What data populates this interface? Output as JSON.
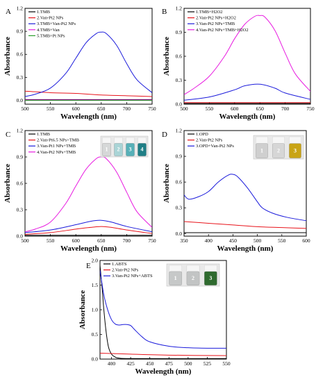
{
  "figure": {
    "chart_data": [
      {
        "panel": "A",
        "type": "line",
        "xlabel": "Wavelength (nm)",
        "ylabel": "Absorbance",
        "xlim": [
          500,
          750
        ],
        "ylim": [
          -0.05,
          1.2
        ],
        "xticks": [
          "500",
          "550",
          "600",
          "650",
          "700",
          "750"
        ],
        "yticks": [
          "0.0",
          "0.3",
          "0.6",
          "0.9",
          "1.2"
        ],
        "legend_position": "top-left",
        "series": [
          {
            "name": "1.TMB",
            "color": "#000000",
            "x": [
              500,
              550,
              600,
              650,
              700,
              750
            ],
            "y": [
              0.01,
              0.01,
              0.01,
              0.01,
              0.01,
              0.01
            ]
          },
          {
            "name": "2.Van-Pt2 NPs",
            "color": "#e8141b",
            "x": [
              500,
              550,
              600,
              650,
              700,
              750
            ],
            "y": [
              0.12,
              0.1,
              0.09,
              0.07,
              0.06,
              0.05
            ]
          },
          {
            "name": "3.TMB+Van-Pt2 NPs",
            "color": "#1a1adb",
            "x": [
              500,
              520,
              550,
              580,
              600,
              620,
              640,
              650,
              660,
              680,
              700,
              720,
              750
            ],
            "y": [
              0.05,
              0.08,
              0.16,
              0.35,
              0.55,
              0.75,
              0.87,
              0.89,
              0.87,
              0.72,
              0.48,
              0.27,
              0.1
            ]
          },
          {
            "name": "4.TMB+Van",
            "color": "#e81ae0",
            "x": [
              500,
              550,
              600,
              650,
              700,
              750
            ],
            "y": [
              0.005,
              0.005,
              0.005,
              0.005,
              0.005,
              0.005
            ]
          },
          {
            "name": "5.TMB+Pt NPs",
            "color": "#2a9d2a",
            "x": [
              500,
              550,
              600,
              650,
              700,
              750
            ],
            "y": [
              0.0,
              0.0,
              0.0,
              0.0,
              0.0,
              0.0
            ]
          }
        ]
      },
      {
        "panel": "B",
        "type": "line",
        "xlabel": "Wavelength (nm)",
        "ylabel": "Absorbance",
        "xlim": [
          500,
          750
        ],
        "ylim": [
          0.0,
          1.2
        ],
        "xticks": [
          "500",
          "550",
          "600",
          "650",
          "700",
          "750"
        ],
        "yticks": [
          "0.0",
          "0.3",
          "0.6",
          "0.9",
          "1.2"
        ],
        "legend_position": "top-left",
        "series": [
          {
            "name": "1.TMB+H2O2",
            "color": "#000000",
            "x": [
              500,
              550,
              600,
              650,
              700,
              750
            ],
            "y": [
              0.01,
              0.01,
              0.01,
              0.01,
              0.01,
              0.01
            ]
          },
          {
            "name": "2.Van-Pt2 NPs+H2O2",
            "color": "#e8141b",
            "x": [
              500,
              550,
              600,
              650,
              700,
              750
            ],
            "y": [
              0.02,
              0.02,
              0.02,
              0.02,
              0.02,
              0.02
            ]
          },
          {
            "name": "3.Van-Pt2 NPs+TMB",
            "color": "#1a1adb",
            "x": [
              500,
              550,
              600,
              620,
              650,
              680,
              700,
              750
            ],
            "y": [
              0.05,
              0.09,
              0.18,
              0.23,
              0.25,
              0.2,
              0.14,
              0.06
            ]
          },
          {
            "name": "4.Van-Pt2 NPs+TMB+H2O2",
            "color": "#e81ae0",
            "x": [
              500,
              520,
              550,
              580,
              600,
              620,
              640,
              650,
              660,
              680,
              700,
              720,
              750
            ],
            "y": [
              0.12,
              0.2,
              0.35,
              0.6,
              0.82,
              1.0,
              1.1,
              1.11,
              1.09,
              0.92,
              0.64,
              0.38,
              0.16
            ]
          }
        ]
      },
      {
        "panel": "C",
        "type": "line",
        "xlabel": "Wavelength (nm)",
        "ylabel": "Absorbance",
        "xlim": [
          500,
          750
        ],
        "ylim": [
          0.0,
          1.2
        ],
        "xticks": [
          "500",
          "550",
          "600",
          "650",
          "700",
          "750"
        ],
        "yticks": [
          "0.0",
          "0.3",
          "0.6",
          "0.9",
          "1.2"
        ],
        "legend_position": "top-left",
        "series": [
          {
            "name": "1.TMB",
            "color": "#000000",
            "x": [
              500,
              550,
              600,
              650,
              700,
              750
            ],
            "y": [
              0.01,
              0.01,
              0.01,
              0.01,
              0.01,
              0.01
            ]
          },
          {
            "name": "2.Van-Pt6.5 NPs+TMB",
            "color": "#e8141b",
            "x": [
              500,
              550,
              600,
              630,
              650,
              670,
              700,
              750
            ],
            "y": [
              0.02,
              0.04,
              0.08,
              0.1,
              0.11,
              0.1,
              0.07,
              0.03
            ]
          },
          {
            "name": "3.Van-Pt1 NPs+TMB",
            "color": "#1a1adb",
            "x": [
              500,
              550,
              600,
              630,
              650,
              670,
              700,
              750
            ],
            "y": [
              0.04,
              0.07,
              0.13,
              0.17,
              0.18,
              0.16,
              0.11,
              0.05
            ]
          },
          {
            "name": "4.Van-Pt2 NPs+TMB",
            "color": "#e81ae0",
            "x": [
              500,
              520,
              550,
              580,
              600,
              620,
              640,
              650,
              660,
              680,
              700,
              720,
              750
            ],
            "y": [
              0.05,
              0.08,
              0.16,
              0.37,
              0.57,
              0.76,
              0.88,
              0.9,
              0.88,
              0.73,
              0.5,
              0.28,
              0.1
            ]
          }
        ]
      },
      {
        "panel": "D",
        "type": "line",
        "xlabel": "Wavelength (nm)",
        "ylabel": "Absorbance",
        "xlim": [
          350,
          600
        ],
        "ylim": [
          -0.03,
          1.2
        ],
        "xticks": [
          "350",
          "400",
          "450",
          "500",
          "550",
          "600"
        ],
        "yticks": [
          "0.0",
          "0.3",
          "0.6",
          "0.9",
          "1.2"
        ],
        "legend_position": "top-left",
        "series": [
          {
            "name": "1.OPD",
            "color": "#000000",
            "x": [
              350,
              400,
              450,
              500,
              550,
              600
            ],
            "y": [
              0.01,
              0.01,
              0.01,
              0.01,
              0.01,
              0.01
            ]
          },
          {
            "name": "2.Van-Pt2 NPs",
            "color": "#e8141b",
            "x": [
              350,
              400,
              450,
              500,
              550,
              600
            ],
            "y": [
              0.14,
              0.12,
              0.1,
              0.08,
              0.07,
              0.06
            ]
          },
          {
            "name": "3.OPD+Van-Pt2 NPs",
            "color": "#1a1adb",
            "x": [
              350,
              360,
              380,
              400,
              420,
              440,
              450,
              460,
              480,
              500,
              510,
              530,
              560,
              600
            ],
            "y": [
              0.45,
              0.4,
              0.43,
              0.49,
              0.6,
              0.68,
              0.69,
              0.66,
              0.53,
              0.37,
              0.3,
              0.24,
              0.19,
              0.15
            ]
          }
        ]
      },
      {
        "panel": "E",
        "type": "line",
        "xlabel": "Wavelength (nm)",
        "ylabel": "Absorbance",
        "xlim": [
          385,
          550
        ],
        "ylim": [
          0.0,
          2.0
        ],
        "xticks": [
          "400",
          "425",
          "450",
          "475",
          "500",
          "525",
          "550"
        ],
        "yticks": [
          "0.0",
          "0.5",
          "1.0",
          "1.5",
          "2.0"
        ],
        "legend_position": "top-left",
        "series": [
          {
            "name": "1.ABTS",
            "color": "#000000",
            "x": [
              385,
              388,
              390,
              393,
              396,
              400,
              405,
              410,
              430,
              550
            ],
            "y": [
              1.9,
              1.4,
              1.0,
              0.55,
              0.25,
              0.1,
              0.04,
              0.02,
              0.01,
              0.01
            ]
          },
          {
            "name": "2.Van-Pt2 NPs",
            "color": "#e8141b",
            "x": [
              385,
              425,
              475,
              550
            ],
            "y": [
              0.12,
              0.1,
              0.08,
              0.07
            ]
          },
          {
            "name": "3.Van-Pt2 NPs+ABTS",
            "color": "#1a1adb",
            "x": [
              385,
              390,
              395,
              400,
              405,
              410,
              415,
              420,
              425,
              430,
              440,
              450,
              475,
              500,
              525,
              550
            ],
            "y": [
              1.8,
              1.3,
              1.0,
              0.8,
              0.71,
              0.69,
              0.7,
              0.7,
              0.68,
              0.6,
              0.45,
              0.35,
              0.26,
              0.23,
              0.22,
              0.22
            ]
          }
        ]
      }
    ],
    "insets": [
      {
        "panel": "C",
        "labels": [
          "1",
          "2",
          "3",
          "4"
        ],
        "colors": [
          "#d6d8d8",
          "#a9d4d6",
          "#56b0b8",
          "#1f7f86"
        ]
      },
      {
        "panel": "D",
        "labels": [
          "1",
          "2",
          "3"
        ],
        "colors": [
          "#cfcfcf",
          "#d6d6d6",
          "#c9a415"
        ]
      },
      {
        "panel": "E",
        "labels": [
          "1",
          "2",
          "3"
        ],
        "colors": [
          "#c6c8c8",
          "#c2c4c4",
          "#2e6a2e"
        ]
      }
    ]
  }
}
